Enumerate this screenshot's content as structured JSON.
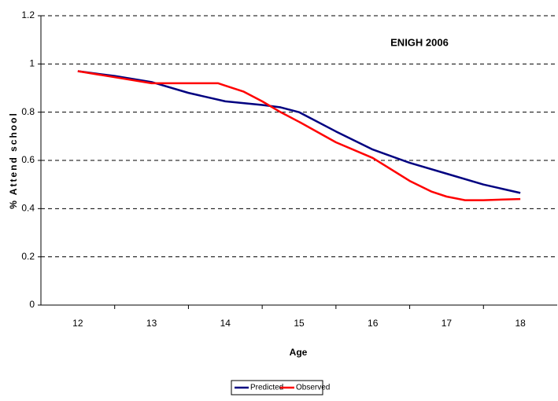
{
  "chart_data": {
    "type": "line",
    "annotation": "ENIGH 2006",
    "x_label": "Age",
    "y_label": "% Attend school",
    "xlim": [
      11.5,
      18.5
    ],
    "xticks": [
      12,
      13,
      14,
      15,
      16,
      17,
      18
    ],
    "ylim": [
      0,
      1.2
    ],
    "yticks": [
      0,
      0.2,
      0.4,
      0.6,
      0.8,
      1,
      1.2
    ],
    "grid": true,
    "legend": "bottom",
    "series": [
      {
        "name": "Predicted",
        "color": "#000080",
        "x": [
          12,
          12.5,
          13,
          13.5,
          14,
          14.5,
          14.75,
          15,
          15.5,
          16,
          16.5,
          17,
          17.5,
          18
        ],
        "values": [
          0.97,
          0.95,
          0.925,
          0.88,
          0.845,
          0.83,
          0.82,
          0.8,
          0.72,
          0.645,
          0.59,
          0.545,
          0.5,
          0.465
        ]
      },
      {
        "name": "Observed",
        "color": "#ff0000",
        "x": [
          12,
          12.5,
          13,
          13.5,
          13.9,
          14,
          14.25,
          14.5,
          14.75,
          15,
          15.5,
          16,
          16.5,
          16.8,
          17,
          17.25,
          17.5,
          18
        ],
        "values": [
          0.97,
          0.945,
          0.92,
          0.92,
          0.92,
          0.91,
          0.885,
          0.845,
          0.8,
          0.76,
          0.675,
          0.61,
          0.515,
          0.47,
          0.45,
          0.435,
          0.435,
          0.44
        ]
      }
    ]
  }
}
